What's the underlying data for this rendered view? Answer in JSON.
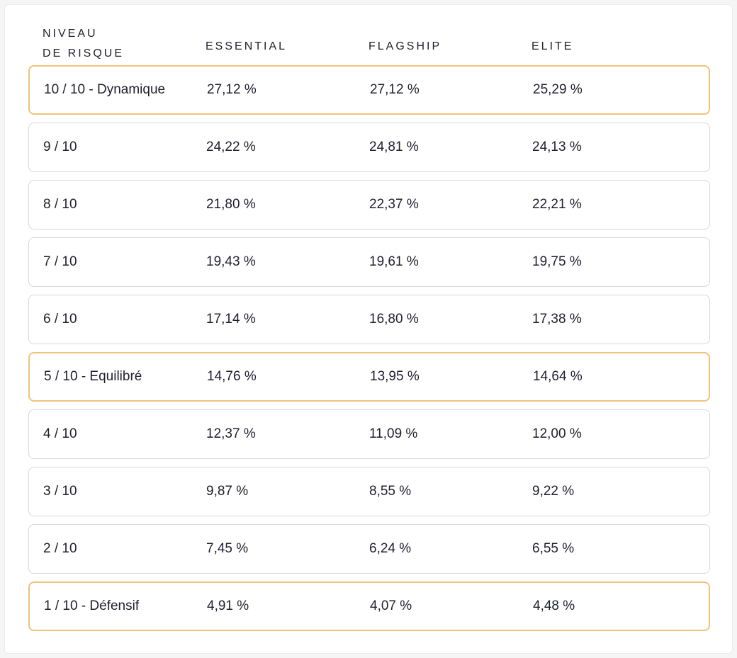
{
  "table": {
    "headers": {
      "risk_level_line1": "NIVEAU",
      "risk_level_line2": "DE RISQUE",
      "essential": "ESSENTIAL",
      "flagship": "FLAGSHIP",
      "elite": "ELITE"
    },
    "highlight_color": "#f1c27a",
    "border_color": "#d6d7e3",
    "rows": [
      {
        "level": "10 / 10 - Dynamique",
        "essential": "27,12 %",
        "flagship": "27,12 %",
        "elite": "25,29 %",
        "highlighted": true
      },
      {
        "level": "9 / 10",
        "essential": "24,22 %",
        "flagship": "24,81 %",
        "elite": "24,13 %",
        "highlighted": false
      },
      {
        "level": "8 / 10",
        "essential": "21,80 %",
        "flagship": "22,37 %",
        "elite": "22,21 %",
        "highlighted": false
      },
      {
        "level": "7 / 10",
        "essential": "19,43 %",
        "flagship": "19,61 %",
        "elite": "19,75 %",
        "highlighted": false
      },
      {
        "level": "6 / 10",
        "essential": "17,14 %",
        "flagship": "16,80 %",
        "elite": "17,38 %",
        "highlighted": false
      },
      {
        "level": "5 / 10 - Equilibré",
        "essential": "14,76 %",
        "flagship": "13,95 %",
        "elite": "14,64 %",
        "highlighted": true
      },
      {
        "level": "4 / 10",
        "essential": "12,37 %",
        "flagship": "11,09 %",
        "elite": "12,00 %",
        "highlighted": false
      },
      {
        "level": "3 / 10",
        "essential": "9,87 %",
        "flagship": "8,55 %",
        "elite": "9,22 %",
        "highlighted": false
      },
      {
        "level": "2 / 10",
        "essential": "7,45 %",
        "flagship": "6,24 %",
        "elite": "6,55 %",
        "highlighted": false
      },
      {
        "level": "1 / 10 - Défensif",
        "essential": "4,91 %",
        "flagship": "4,07 %",
        "elite": "4,48 %",
        "highlighted": true
      }
    ]
  }
}
